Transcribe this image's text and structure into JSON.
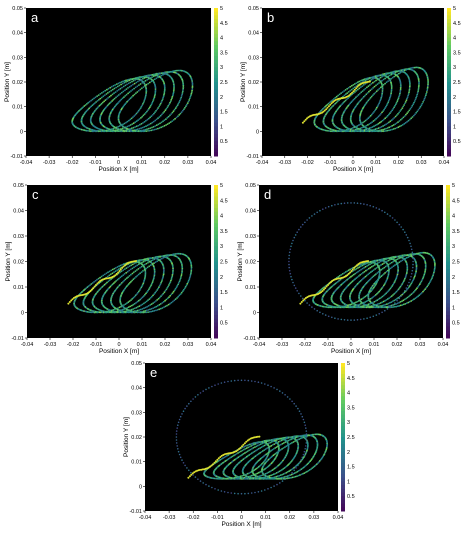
{
  "chart_data": [
    {
      "panel_label": "a",
      "type": "scatter",
      "xlabel": "Position X [m]",
      "ylabel": "Position Y [m]",
      "xlim": [
        -0.04,
        0.04
      ],
      "ylim": [
        -0.01,
        0.05
      ],
      "xticks": [
        "-0.04",
        "-0.03",
        "-0.02",
        "-0.01",
        "0",
        "0.01",
        "0.02",
        "0.03",
        "0.04"
      ],
      "yticks": [
        "-0.01",
        "0",
        "0.01",
        "0.02",
        "0.03",
        "0.04",
        "0.05"
      ],
      "colorbar": {
        "min": 0,
        "max": 5,
        "ticks": [
          "5",
          "4.5",
          "4",
          "3.5",
          "3",
          "2.5",
          "2",
          "1.5",
          "1",
          "0.5"
        ]
      },
      "series": [
        {
          "loops": 6,
          "x_center": 0.008,
          "x_spread": 0.027,
          "y_base": 0.0,
          "y_peak": 0.032,
          "tail": false,
          "halo": false
        }
      ]
    },
    {
      "panel_label": "b",
      "type": "scatter",
      "xlabel": "Position X [m]",
      "ylabel": "Position Y [m]",
      "xlim": [
        -0.04,
        0.04
      ],
      "ylim": [
        -0.01,
        0.05
      ],
      "xticks": [
        "-0.04",
        "-0.03",
        "-0.02",
        "-0.01",
        "0",
        "0.01",
        "0.02",
        "0.03",
        "0.04"
      ],
      "yticks": [
        "-0.01",
        "0",
        "0.01",
        "0.02",
        "0.03",
        "0.04",
        "0.05"
      ],
      "colorbar": {
        "min": 0,
        "max": 5,
        "ticks": [
          "5",
          "4.5",
          "4",
          "3.5",
          "3",
          "2.5",
          "2",
          "1.5",
          "1",
          "0.5"
        ]
      },
      "series": [
        {
          "loops": 6,
          "x_center": 0.01,
          "x_spread": 0.025,
          "y_base": 0.0,
          "y_peak": 0.033,
          "tail": true,
          "halo": false
        }
      ]
    },
    {
      "panel_label": "c",
      "type": "scatter",
      "xlabel": "Position X [m]",
      "ylabel": "Position Y [m]",
      "xlim": [
        -0.04,
        0.04
      ],
      "ylim": [
        -0.01,
        0.05
      ],
      "xticks": [
        "-0.04",
        "-0.03",
        "-0.02",
        "-0.01",
        "0",
        "0.01",
        "0.02",
        "0.03",
        "0.04"
      ],
      "yticks": [
        "-0.01",
        "0",
        "0.01",
        "0.02",
        "0.03",
        "0.04",
        "0.05"
      ],
      "colorbar": {
        "min": 0,
        "max": 5,
        "ticks": [
          "5",
          "4.5",
          "4",
          "3.5",
          "3",
          "2.5",
          "2",
          "1.5",
          "1",
          "0.5"
        ]
      },
      "series": [
        {
          "loops": 6,
          "x_center": 0.008,
          "x_spread": 0.026,
          "y_base": 0.0,
          "y_peak": 0.03,
          "tail": true,
          "halo": false
        }
      ]
    },
    {
      "panel_label": "d",
      "type": "scatter",
      "xlabel": "Position X [m]",
      "ylabel": "Position Y [m]",
      "xlim": [
        -0.04,
        0.04
      ],
      "ylim": [
        -0.01,
        0.05
      ],
      "xticks": [
        "-0.04",
        "-0.03",
        "-0.02",
        "-0.01",
        "0",
        "0.01",
        "0.02",
        "0.03",
        "0.04"
      ],
      "yticks": [
        "-0.01",
        "0",
        "0.01",
        "0.02",
        "0.03",
        "0.04",
        "0.05"
      ],
      "colorbar": {
        "min": 0,
        "max": 5,
        "ticks": [
          "5",
          "4.5",
          "4",
          "3.5",
          "3",
          "2.5",
          "2",
          "1.5",
          "1",
          "0.5"
        ]
      },
      "series": [
        {
          "loops": 7,
          "x_center": 0.012,
          "x_spread": 0.024,
          "y_base": 0.002,
          "y_peak": 0.03,
          "tail": true,
          "halo": true
        }
      ]
    },
    {
      "panel_label": "e",
      "type": "scatter",
      "xlabel": "Position X [m]",
      "ylabel": "Position Y [m]",
      "xlim": [
        -0.04,
        0.04
      ],
      "ylim": [
        -0.01,
        0.05
      ],
      "xticks": [
        "-0.04",
        "-0.03",
        "-0.02",
        "-0.01",
        "0",
        "0.01",
        "0.02",
        "0.03",
        "0.04"
      ],
      "yticks": [
        "-0.01",
        "0",
        "0.01",
        "0.02",
        "0.03",
        "0.04",
        "0.05"
      ],
      "colorbar": {
        "min": 0,
        "max": 5,
        "ticks": [
          "5",
          "4.5",
          "4",
          "3.5",
          "3",
          "2.5",
          "2",
          "1.5",
          "1",
          "0.5"
        ]
      },
      "series": [
        {
          "loops": 7,
          "x_center": 0.012,
          "x_spread": 0.022,
          "y_base": 0.003,
          "y_peak": 0.027,
          "tail": true,
          "halo": true
        }
      ]
    }
  ],
  "colors": {
    "plot_background": "#000000",
    "low": "#3b0f70",
    "mid": "#21a08a",
    "high": "#f5e61e"
  }
}
